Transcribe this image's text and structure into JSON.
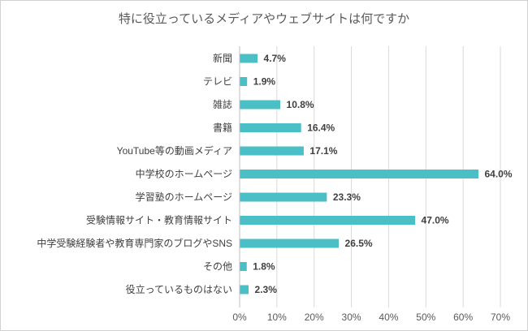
{
  "chart_data": {
    "type": "bar",
    "orientation": "horizontal",
    "title": "特に役立っているメディアやウェブサイトは何ですか",
    "categories": [
      "新聞",
      "テレビ",
      "雑誌",
      "書籍",
      "YouTube等の動画メディア",
      "中学校のホームページ",
      "学習塾のホームページ",
      "受験情報サイト・教育情報サイト",
      "中学受験経験者や教育専門家のブログやSNS",
      "その他",
      "役立っているものはない"
    ],
    "values": [
      4.7,
      1.9,
      10.8,
      16.4,
      17.1,
      64.0,
      23.3,
      47.0,
      26.5,
      1.8,
      2.3
    ],
    "value_labels": [
      "4.7%",
      "1.9%",
      "10.8%",
      "16.4%",
      "17.1%",
      "64.0%",
      "23.3%",
      "47.0%",
      "26.5%",
      "1.8%",
      "2.3%"
    ],
    "xlim": [
      0,
      70
    ],
    "x_ticks": [
      "0%",
      "10%",
      "20%",
      "30%",
      "40%",
      "50%",
      "60%",
      "70%"
    ],
    "grid": true,
    "bar_color": "#4bbfc6",
    "grid_color": "#d9d9d9"
  }
}
